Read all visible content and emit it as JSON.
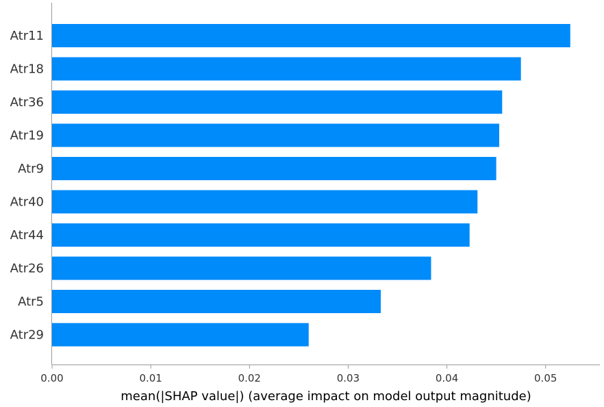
{
  "chart_data": {
    "type": "bar",
    "orientation": "horizontal",
    "title": "",
    "xlabel": "mean(|SHAP value|) (average impact on model output magnitude)",
    "ylabel": "",
    "xlim": [
      0.0,
      0.0555
    ],
    "xticks": [
      0.0,
      0.01,
      0.02,
      0.03,
      0.04,
      0.05
    ],
    "xtick_labels": [
      "0.00",
      "0.01",
      "0.02",
      "0.03",
      "0.04",
      "0.05"
    ],
    "categories": [
      "Atr11",
      "Atr18",
      "Atr36",
      "Atr19",
      "Atr9",
      "Atr40",
      "Atr44",
      "Atr26",
      "Atr5",
      "Atr29"
    ],
    "values": [
      0.0525,
      0.0475,
      0.0456,
      0.0453,
      0.045,
      0.0431,
      0.0423,
      0.0384,
      0.0333,
      0.026
    ],
    "bar_color": "#008bfb",
    "axis_color": "#999999",
    "grid": false,
    "legend": "none"
  }
}
